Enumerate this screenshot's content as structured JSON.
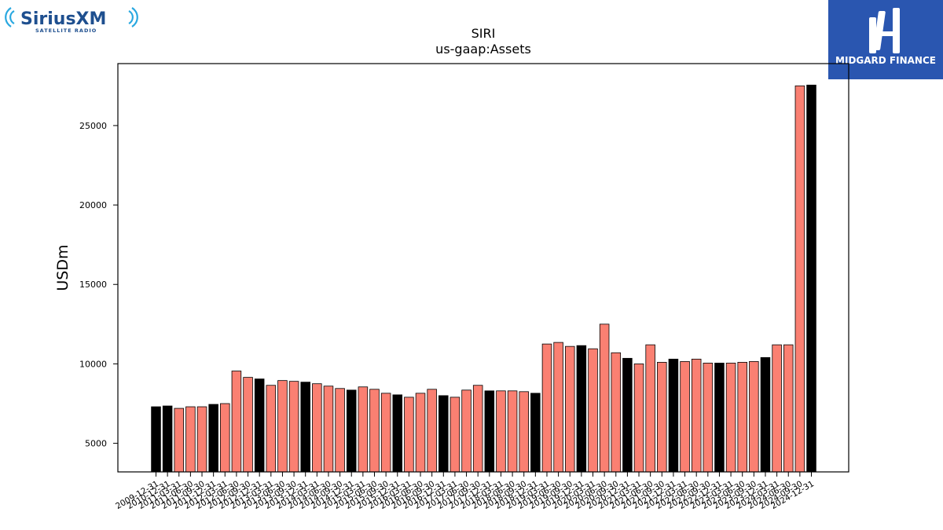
{
  "logos": {
    "left_brand": "SiriusXM",
    "left_tagline": "SATELLITE RADIO",
    "right_brand": "MIDGARD FINANCE"
  },
  "colors": {
    "bar_default": "#fa8072",
    "bar_highlight": "#000000",
    "logo_blue": "#1e6fb3",
    "logo_right_bg": "#2a56b0"
  },
  "chart_data": {
    "type": "bar",
    "title": "SIRI",
    "subtitle": "us-gaap:Assets",
    "xlabel": "",
    "ylabel": "USDm",
    "ylim": [
      3200,
      28900
    ],
    "yticks": [
      5000,
      10000,
      15000,
      20000,
      25000
    ],
    "grid": false,
    "categories": [
      "2009-12-31",
      "2010-12-31",
      "2011-03-31",
      "2011-06-30",
      "2011-09-30",
      "2011-12-31",
      "2012-03-31",
      "2012-06-30",
      "2012-09-30",
      "2012-12-31",
      "2013-03-31",
      "2013-06-30",
      "2013-09-30",
      "2013-12-31",
      "2014-03-31",
      "2014-06-30",
      "2014-09-30",
      "2014-12-31",
      "2015-03-31",
      "2015-06-30",
      "2015-09-30",
      "2015-12-31",
      "2016-03-31",
      "2016-06-30",
      "2016-09-30",
      "2016-12-31",
      "2017-03-31",
      "2017-06-30",
      "2017-09-30",
      "2017-12-31",
      "2018-03-31",
      "2018-06-30",
      "2018-09-30",
      "2018-12-31",
      "2019-03-31",
      "2019-06-30",
      "2019-09-30",
      "2019-12-31",
      "2020-03-31",
      "2020-06-30",
      "2020-09-30",
      "2020-12-31",
      "2021-03-31",
      "2021-06-30",
      "2021-09-30",
      "2021-12-31",
      "2022-03-31",
      "2022-06-30",
      "2022-09-30",
      "2022-12-31",
      "2023-03-31",
      "2023-06-30",
      "2023-09-30",
      "2023-12-31",
      "2024-03-31",
      "2024-06-30",
      "2024-09-30",
      "2024-12-31"
    ],
    "values": [
      7300,
      7350,
      7200,
      7300,
      7300,
      7450,
      7500,
      9550,
      9150,
      9050,
      8650,
      8950,
      8900,
      8850,
      8750,
      8600,
      8450,
      8350,
      8550,
      8400,
      8150,
      8050,
      7900,
      8150,
      8400,
      8000,
      7900,
      8350,
      8650,
      8300,
      8300,
      8300,
      8250,
      8150,
      11250,
      11350,
      11100,
      11150,
      10950,
      12500,
      10700,
      10350,
      10000,
      11200,
      10100,
      10300,
      10150,
      10300,
      10050,
      10050,
      10050,
      10100,
      10150,
      10400,
      11200,
      11200,
      27500,
      27550
    ],
    "highlight": [
      true,
      true,
      false,
      false,
      false,
      true,
      false,
      false,
      false,
      true,
      false,
      false,
      false,
      true,
      false,
      false,
      false,
      true,
      false,
      false,
      false,
      true,
      false,
      false,
      false,
      true,
      false,
      false,
      false,
      true,
      false,
      false,
      false,
      true,
      false,
      false,
      false,
      true,
      false,
      false,
      false,
      true,
      false,
      false,
      false,
      true,
      false,
      false,
      false,
      true,
      false,
      false,
      false,
      true,
      false,
      false,
      false,
      true
    ]
  }
}
